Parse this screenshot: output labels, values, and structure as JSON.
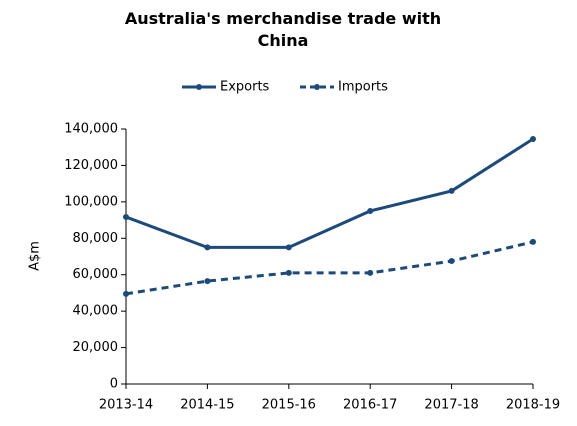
{
  "chart_data": {
    "type": "line",
    "title": "Australia's merchandise trade with China",
    "y_label": "A$m",
    "categories": [
      "2013-14",
      "2014-15",
      "2015-16",
      "2016-17",
      "2017-18",
      "2018-19"
    ],
    "series": [
      {
        "name": "Exports",
        "color": "#1b4a7c",
        "line_style": "solid",
        "values": [
          91700,
          75000,
          75000,
          95000,
          106000,
          134500
        ]
      },
      {
        "name": "Imports",
        "color": "#1b4a7c",
        "line_style": "dashed",
        "values": [
          49500,
          56500,
          61000,
          61000,
          67500,
          78000
        ]
      }
    ],
    "ylim": [
      0,
      140000
    ],
    "yticks": [
      0,
      {
        "value": 20000,
        "label": "20,000"
      },
      {
        "value": 40000,
        "label": "40,000"
      },
      {
        "value": 60000,
        "label": "60,000"
      },
      {
        "value": 80000,
        "label": "80,000"
      },
      {
        "value": 100000,
        "label": "100,000"
      },
      {
        "value": 120000,
        "label": "120,000"
      },
      {
        "value": 140000,
        "label": "140,000"
      }
    ],
    "grid": false,
    "legend": "top"
  }
}
